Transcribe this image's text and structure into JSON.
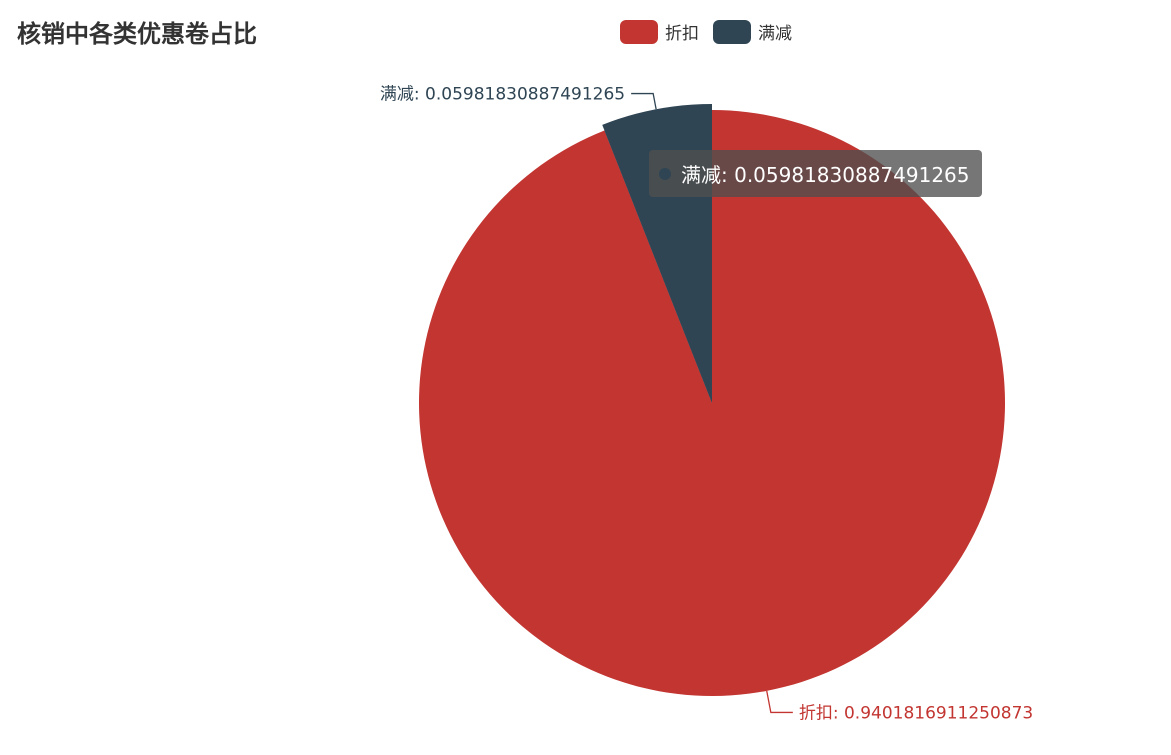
{
  "chart_data": {
    "type": "pie",
    "title": "核销中各类优惠卷占比",
    "legend_position": "top-center",
    "series": [
      {
        "name": "折扣",
        "value": 0.9401816911250873,
        "label": "折扣: 0.9401816911250873",
        "color": "#c23531"
      },
      {
        "name": "满减",
        "value": 0.05981830887491265,
        "label": "满减: 0.05981830887491265",
        "color": "#2f4554"
      }
    ]
  },
  "tooltip": {
    "text": "满减: 0.05981830887491265",
    "color": "#2f4554"
  }
}
